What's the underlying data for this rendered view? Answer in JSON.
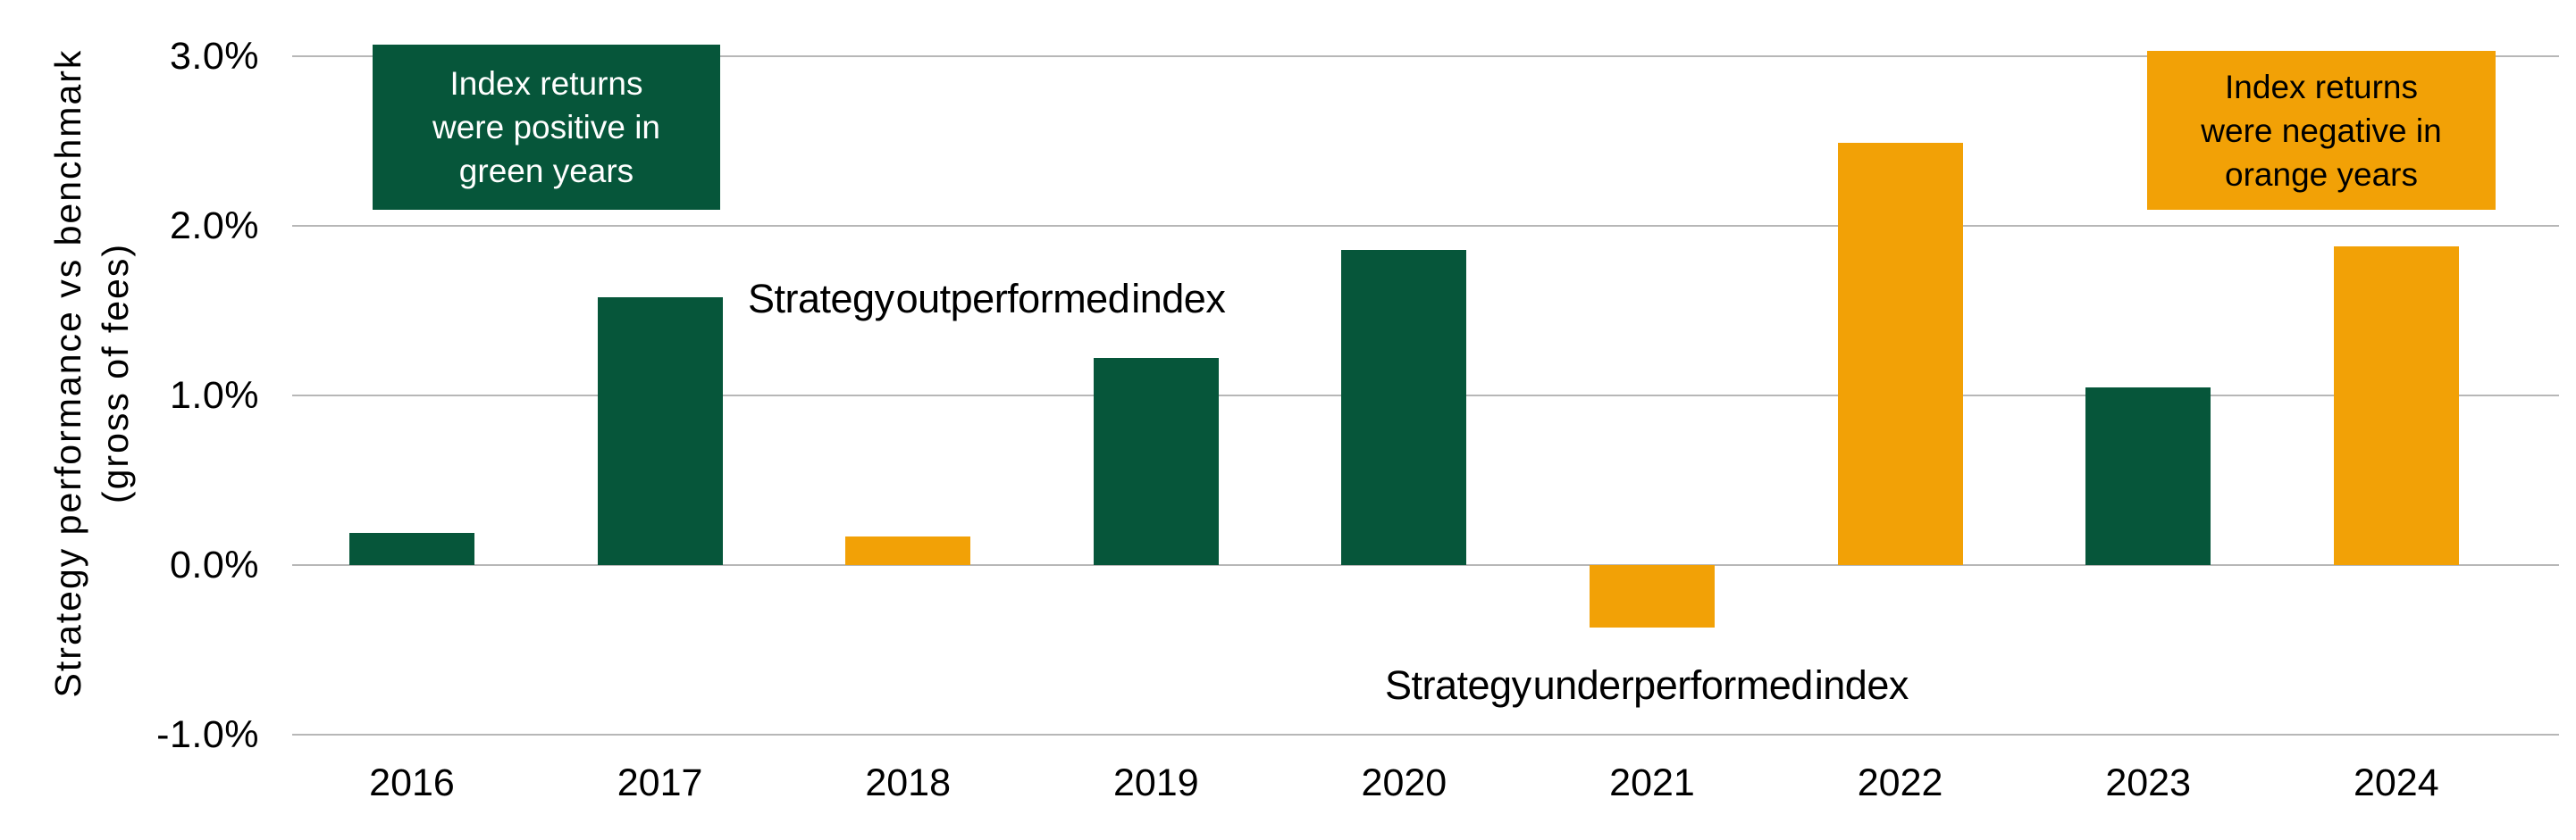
{
  "chart_data": {
    "type": "bar",
    "title": "",
    "ylabel_line1": "Strategy performance vs benchmark",
    "ylabel_line2": "(gross of fees)",
    "categories": [
      "2016",
      "2017",
      "2018",
      "2019",
      "2020",
      "2021",
      "2022",
      "2023",
      "2024"
    ],
    "values": [
      0.19,
      1.58,
      0.17,
      1.22,
      1.86,
      -0.37,
      2.49,
      1.05,
      1.88
    ],
    "bar_colors": [
      "green",
      "green",
      "orange",
      "green",
      "green",
      "orange",
      "orange",
      "green",
      "orange"
    ],
    "y_ticks": [
      "3.0%",
      "2.0%",
      "1.0%",
      "0.0%",
      "-1.0%"
    ],
    "y_tick_values": [
      3.0,
      2.0,
      1.0,
      0.0,
      -1.0
    ],
    "ylim": [
      -1.15,
      3.33
    ],
    "grid": true,
    "legend": "none",
    "annotations": {
      "green_box_lines": [
        "Index returns",
        "were positive in",
        "green years"
      ],
      "orange_box_lines": [
        "Index returns",
        "were negative in",
        "orange years"
      ],
      "outperformed_label": "Strategy outperformed index",
      "underperformed_label": "Strategy underperformed index"
    },
    "colors": {
      "green": "#06563A",
      "orange": "#F2A106",
      "gridline": "#b7b7b7",
      "text": "#000000",
      "green_box_text": "#ffffff",
      "orange_box_text": "#000000"
    }
  }
}
